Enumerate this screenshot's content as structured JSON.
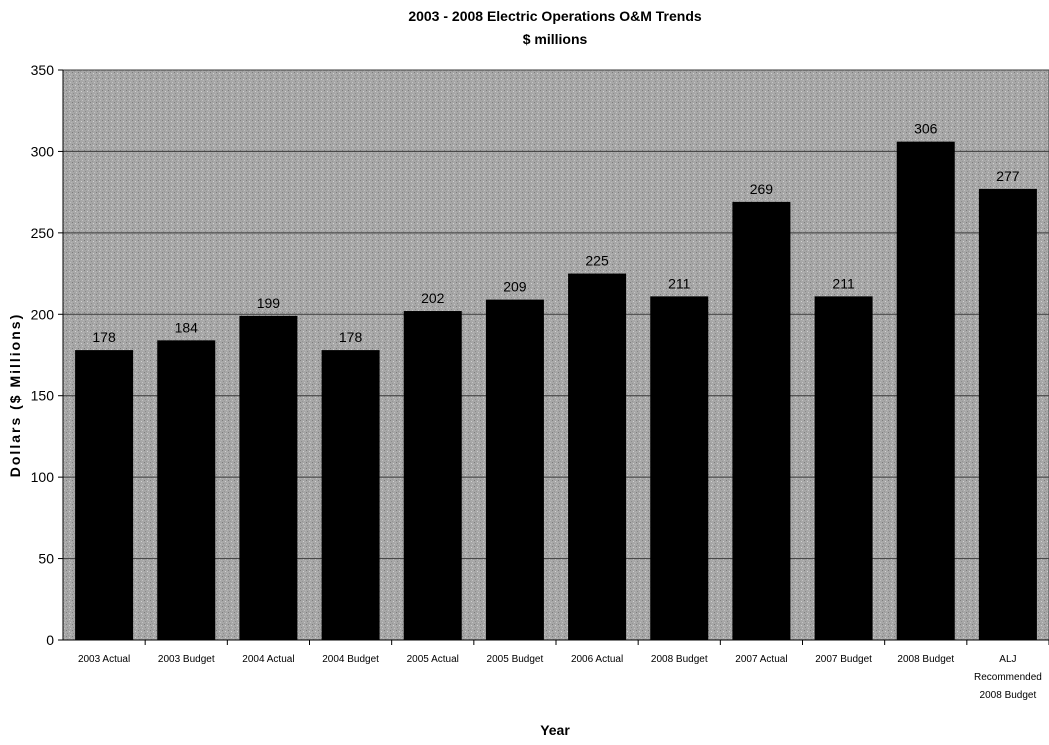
{
  "chart_data": {
    "type": "bar",
    "title": "2003 - 2008 Electric Operations O&M Trends",
    "subtitle": "$ millions",
    "xlabel": "Year",
    "ylabel": "Dollars ($ Millions)",
    "ylim": [
      0,
      350
    ],
    "yticks": [
      0,
      50,
      100,
      150,
      200,
      250,
      300,
      350
    ],
    "grid": true,
    "legend": "none",
    "categories": [
      "2003 Actual",
      "2003 Budget",
      "2004 Actual",
      "2004 Budget",
      "2005 Actual",
      "2005 Budget",
      "2006 Actual",
      "2008 Budget",
      "2007 Actual",
      "2007 Budget",
      "2008 Budget",
      "ALJ Recommended 2008 Budget"
    ],
    "values": [
      178,
      184,
      199,
      178,
      202,
      209,
      225,
      211,
      269,
      211,
      306,
      277
    ],
    "data_labels": [
      "178",
      "184",
      "199",
      "178",
      "202",
      "209",
      "225",
      "211",
      "269",
      "211",
      "306",
      "277"
    ],
    "colors": {
      "bar": "#000000",
      "plot_background": "#a9a9a9",
      "gridline": "#3a3a3a",
      "text": "#000000"
    }
  }
}
